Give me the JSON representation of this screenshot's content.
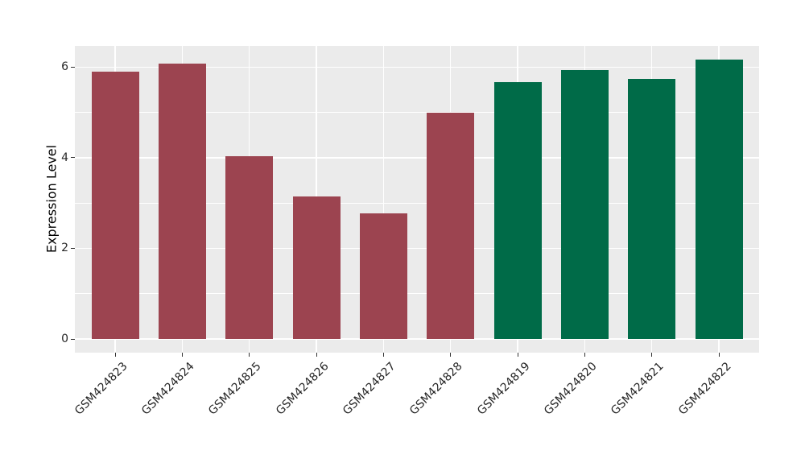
{
  "chart_data": {
    "type": "bar",
    "title": "",
    "xlabel": "",
    "ylabel": "Expression Level",
    "categories": [
      "GSM424823",
      "GSM424824",
      "GSM424825",
      "GSM424826",
      "GSM424827",
      "GSM424828",
      "GSM424819",
      "GSM424820",
      "GSM424821",
      "GSM424822"
    ],
    "values": [
      5.9,
      6.07,
      4.03,
      3.15,
      2.77,
      5.0,
      5.66,
      5.93,
      5.74,
      6.17
    ],
    "groups": [
      "group_a",
      "group_a",
      "group_a",
      "group_a",
      "group_a",
      "group_a",
      "group_b",
      "group_b",
      "group_b",
      "group_b"
    ],
    "group_colors": {
      "group_a": "#9C4450",
      "group_b": "#006B48"
    },
    "yticks": [
      0,
      2,
      4,
      6
    ],
    "minor_yticks": [
      1,
      3,
      5
    ],
    "ylim": [
      -0.34,
      6.47
    ],
    "grid": true,
    "legend_position": "none",
    "panel_background": "#EBEBEB",
    "grid_color": "#FFFFFF",
    "tick_mark_color": "#333333",
    "axis_text_color": "#262626"
  }
}
